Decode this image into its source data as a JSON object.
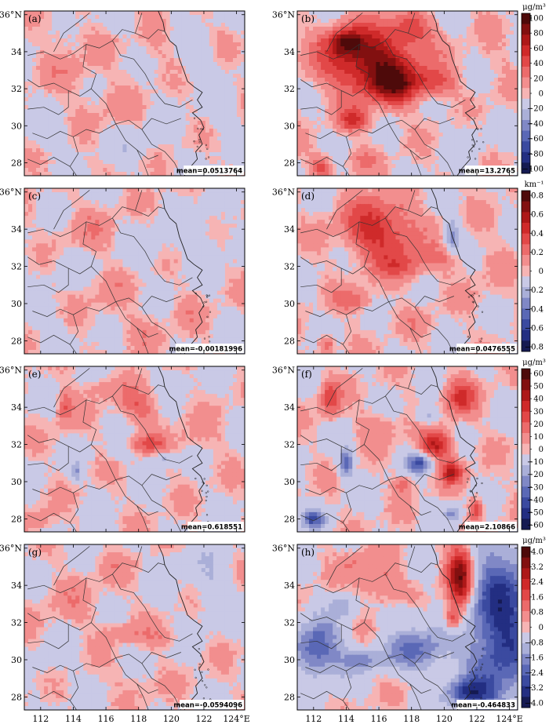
{
  "chart_data": {
    "type": "heatmap",
    "x_axis": {
      "ticks": [
        112,
        114,
        116,
        118,
        120,
        122,
        124
      ],
      "tick_labels": [
        "112",
        "114",
        "116",
        "118",
        "120",
        "122",
        "124°E"
      ],
      "xlim": [
        111,
        124.5
      ]
    },
    "y_axis": {
      "ticks": [
        28,
        30,
        32,
        34,
        36
      ],
      "tick_labels": [
        "28",
        "30",
        "32",
        "34",
        "36°N"
      ],
      "ylim": [
        27.3,
        36.2
      ]
    },
    "panels": [
      {
        "id": "a",
        "label": "(a)",
        "mean": "mean=0.0513764",
        "row": 0,
        "col": 0,
        "blobs": [
          [
            114,
            33,
            2.0,
            1.2,
            0.35
          ],
          [
            119,
            34.5,
            1.5,
            1.0,
            0.3
          ],
          [
            116,
            31,
            1.8,
            1.2,
            0.3
          ],
          [
            112.5,
            29.5,
            1.2,
            1.0,
            -0.4
          ],
          [
            118,
            29,
            1.6,
            0.9,
            -0.35
          ],
          [
            121.5,
            33.5,
            1.3,
            1.2,
            -0.4
          ],
          [
            123,
            30.5,
            1.2,
            1.5,
            -0.3
          ],
          [
            117,
            35.5,
            1.2,
            0.6,
            -0.3
          ],
          [
            113.5,
            35,
            1.2,
            0.8,
            0.3
          ]
        ]
      },
      {
        "id": "b",
        "label": "(b)",
        "mean": "mean=13.2765",
        "row": 0,
        "col": 1,
        "blobs": [
          [
            115.5,
            33.5,
            2.8,
            1.8,
            2.6
          ],
          [
            114,
            34.5,
            1.0,
            0.7,
            1.8
          ],
          [
            117,
            32.2,
            1.5,
            1.0,
            1.8
          ],
          [
            119.5,
            32.3,
            1.2,
            0.7,
            1.2
          ],
          [
            114.5,
            30.3,
            1.0,
            0.6,
            1.4
          ],
          [
            112.5,
            27.8,
            0.6,
            0.6,
            1.4
          ],
          [
            115,
            28.2,
            1.0,
            0.6,
            0.6
          ],
          [
            121.5,
            30.0,
            1.0,
            0.8,
            -0.3
          ],
          [
            123,
            33.5,
            1.2,
            1.8,
            0.15
          ],
          [
            118,
            35.2,
            1.2,
            0.8,
            1.2
          ]
        ]
      },
      {
        "id": "c",
        "label": "(c)",
        "mean": "mean=-0.00181996",
        "row": 1,
        "col": 0,
        "blobs": [
          [
            115,
            34,
            1.8,
            1.2,
            0.35
          ],
          [
            119,
            33,
            1.5,
            1.2,
            -0.3
          ],
          [
            116,
            30.5,
            1.8,
            1.2,
            0.3
          ],
          [
            112.5,
            29,
            1.2,
            1.0,
            -0.3
          ],
          [
            122,
            33.5,
            1.5,
            1.5,
            -0.4
          ],
          [
            118,
            28.5,
            1.6,
            0.9,
            0.3
          ],
          [
            113.5,
            32,
            1.2,
            0.9,
            -0.3
          ],
          [
            121,
            29.5,
            1.0,
            1.0,
            0.3
          ]
        ]
      },
      {
        "id": "d",
        "label": "(d)",
        "mean": "mean=0.0476555",
        "row": 1,
        "col": 1,
        "blobs": [
          [
            116,
            34,
            2.2,
            1.6,
            1.8
          ],
          [
            117.5,
            32,
            1.4,
            0.9,
            1.1
          ],
          [
            120,
            32.4,
            1.0,
            0.6,
            0.8
          ],
          [
            114.5,
            30.2,
            1.2,
            0.6,
            0.9
          ],
          [
            112.8,
            27.8,
            0.5,
            0.5,
            1.2
          ],
          [
            120.5,
            33.6,
            0.5,
            1.0,
            -1.2
          ],
          [
            122.5,
            32,
            1.5,
            2.0,
            0.2
          ],
          [
            118.5,
            29,
            1.2,
            0.6,
            0.3
          ]
        ]
      },
      {
        "id": "e",
        "label": "(e)",
        "mean": "mean=0.618551",
        "row": 2,
        "col": 0,
        "blobs": [
          [
            113.5,
            34,
            0.5,
            1.0,
            1.0
          ],
          [
            114.2,
            30.5,
            0.3,
            0.5,
            -1.0
          ],
          [
            118,
            34,
            1.2,
            0.9,
            0.9
          ],
          [
            118.5,
            32,
            1.2,
            0.5,
            1.0
          ],
          [
            119.5,
            31.2,
            0.7,
            0.4,
            -0.9
          ],
          [
            117,
            31.5,
            0.8,
            0.4,
            -0.6
          ],
          [
            121.5,
            32.5,
            1.5,
            1.2,
            0.3
          ],
          [
            120,
            35.5,
            1.0,
            0.5,
            -0.5
          ],
          [
            112,
            28,
            0.8,
            0.6,
            0.6
          ],
          [
            116,
            35,
            1.2,
            0.6,
            0.5
          ]
        ]
      },
      {
        "id": "f",
        "label": "(f)",
        "mean": "mean=2.10866",
        "row": 2,
        "col": 1,
        "blobs": [
          [
            113,
            34.5,
            0.6,
            1.0,
            1.4
          ],
          [
            114,
            31,
            0.4,
            0.8,
            -1.8
          ],
          [
            119.5,
            32,
            1.0,
            0.8,
            2.0
          ],
          [
            118.5,
            31,
            0.8,
            0.5,
            -2.0
          ],
          [
            120.5,
            30.5,
            0.7,
            0.6,
            1.8
          ],
          [
            121,
            34.5,
            1.0,
            1.0,
            1.4
          ],
          [
            119,
            33.5,
            0.7,
            0.5,
            -1.0
          ],
          [
            112,
            28,
            0.7,
            0.5,
            -1.8
          ],
          [
            116,
            33,
            1.2,
            0.8,
            0.6
          ],
          [
            122,
            28.5,
            0.4,
            0.6,
            1.5
          ],
          [
            120.5,
            28.3,
            0.5,
            0.5,
            -1.2
          ],
          [
            117.5,
            29.8,
            0.6,
            0.5,
            0.9
          ]
        ]
      },
      {
        "id": "g",
        "label": "(g)",
        "mean": "mean=-0.0594096",
        "row": 3,
        "col": 0,
        "blobs": [
          [
            114,
            33,
            2.0,
            1.3,
            0.3
          ],
          [
            117,
            31.5,
            1.2,
            0.5,
            0.6
          ],
          [
            119.5,
            31.2,
            1.0,
            0.5,
            0.5
          ],
          [
            122.5,
            34,
            1.5,
            2.0,
            -0.5
          ],
          [
            112.5,
            29.5,
            1.2,
            0.9,
            -0.3
          ],
          [
            118,
            28.8,
            1.5,
            0.8,
            0.3
          ],
          [
            120,
            35.5,
            1.0,
            0.6,
            -0.3
          ],
          [
            116,
            35,
            1.2,
            0.7,
            0.3
          ]
        ]
      },
      {
        "id": "h",
        "label": "(h)",
        "mean": "mean=-0.464833",
        "row": 3,
        "col": 1,
        "blobs": [
          [
            121,
            34.5,
            0.8,
            1.8,
            2.8
          ],
          [
            123.5,
            32,
            2.0,
            4.5,
            -2.6
          ],
          [
            112.2,
            30.5,
            1.5,
            1.5,
            -2.0
          ],
          [
            118.5,
            30.5,
            2.0,
            1.2,
            -1.6
          ],
          [
            115,
            30,
            1.2,
            0.6,
            -1.2
          ],
          [
            120.5,
            32.2,
            0.5,
            0.6,
            1.5
          ],
          [
            116,
            34,
            1.5,
            1.2,
            0.8
          ],
          [
            113.8,
            33,
            0.8,
            0.7,
            -1.0
          ],
          [
            121.5,
            28.2,
            1.5,
            0.8,
            -2.0
          ],
          [
            117.5,
            32.5,
            1.0,
            0.6,
            -0.8
          ],
          [
            114.5,
            35.3,
            1.0,
            0.6,
            0.5
          ]
        ]
      }
    ],
    "colorbars": [
      {
        "row": 0,
        "unit": "μg/m³",
        "labels": [
          "100",
          "80",
          "60",
          "40",
          "20",
          "0",
          "−20",
          "−40",
          "−60",
          "−80",
          "−100"
        ]
      },
      {
        "row": 1,
        "unit": "km⁻¹",
        "labels": [
          "0.8",
          "0.6",
          "0.4",
          "0.2",
          "0",
          "−0.2",
          "−0.4",
          "−0.6",
          "−0.8"
        ]
      },
      {
        "row": 2,
        "unit": "μg/m³",
        "labels": [
          "60",
          "50",
          "40",
          "30",
          "20",
          "10",
          "0",
          "−10",
          "−20",
          "−30",
          "−40",
          "−50",
          "−60"
        ]
      },
      {
        "row": 3,
        "unit": "μg/m³",
        "labels": [
          "4.0",
          "3.2",
          "2.4",
          "1.6",
          "0.8",
          "0",
          "−0.8",
          "−1.6",
          "−2.4",
          "−3.2",
          "−4.0"
        ]
      }
    ],
    "palette": [
      "#151a52",
      "#232e82",
      "#3b4aa0",
      "#5a68b6",
      "#8088c6",
      "#aaafd8",
      "#c9c9e6",
      "#f6b4b4",
      "#f28e8e",
      "#ec6b6b",
      "#e24848",
      "#cf2a2a",
      "#ad1818",
      "#821010",
      "#4e0a0a"
    ]
  }
}
